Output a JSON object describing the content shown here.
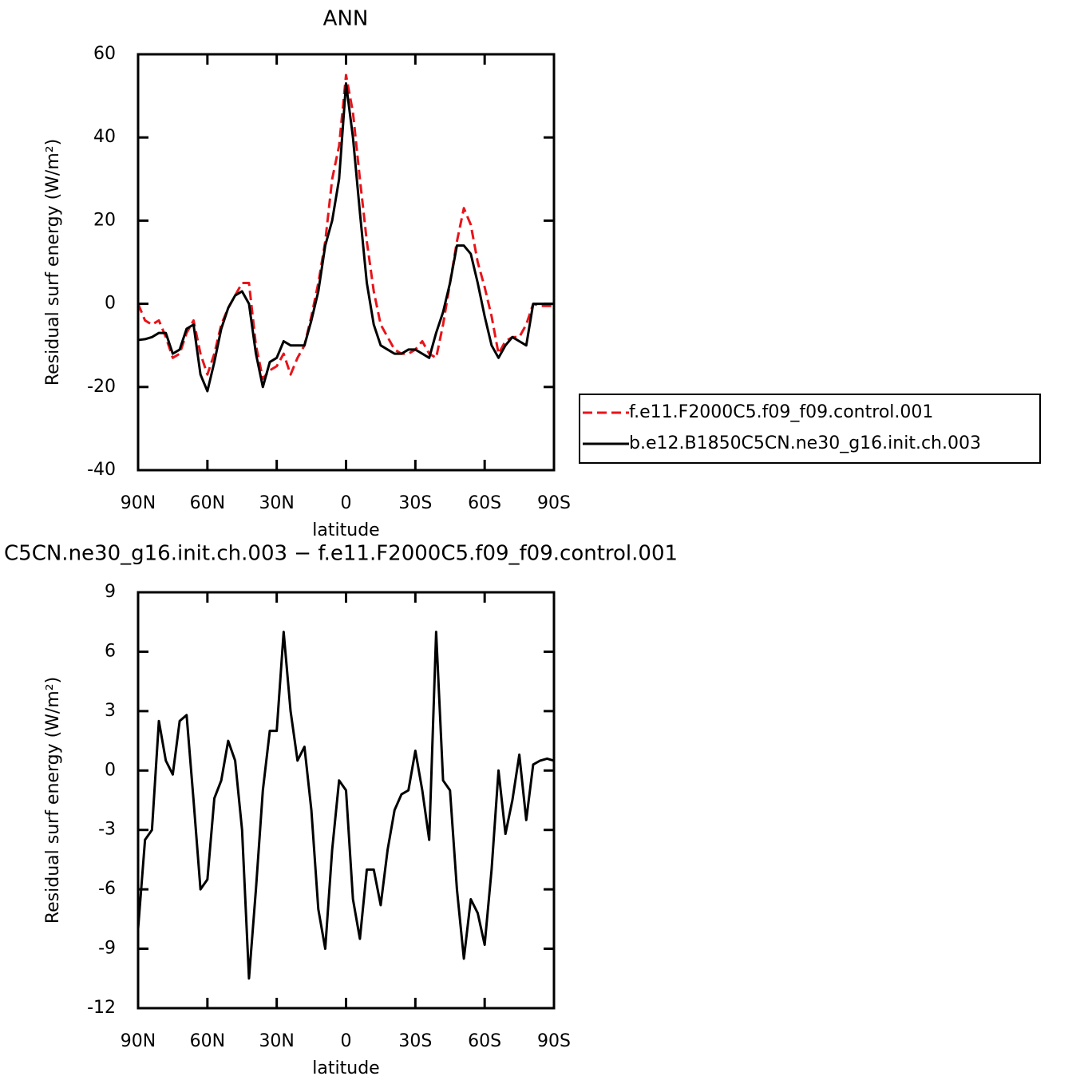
{
  "chart_data": [
    {
      "type": "line",
      "title": "ANN",
      "x_label": "latitude",
      "y_label": "Residual surf energy (W/m²)",
      "x": [
        90,
        87,
        84,
        81,
        78,
        75,
        72,
        69,
        66,
        63,
        60,
        57,
        54,
        51,
        48,
        45,
        42,
        39,
        36,
        33,
        30,
        27,
        24,
        21,
        18,
        15,
        12,
        9,
        6,
        3,
        0,
        -3,
        -6,
        -9,
        -12,
        -15,
        -18,
        -21,
        -24,
        -27,
        -30,
        -33,
        -36,
        -39,
        -42,
        -45,
        -48,
        -51,
        -54,
        -57,
        -60,
        -63,
        -66,
        -69,
        -72,
        -75,
        -78,
        -81,
        -84,
        -87,
        -90
      ],
      "xlim": [
        90,
        -90
      ],
      "xticks": [
        {
          "value": 90,
          "label": "90N"
        },
        {
          "value": 60,
          "label": "60N"
        },
        {
          "value": 30,
          "label": "30N"
        },
        0,
        {
          "value": -30,
          "label": "30S"
        },
        {
          "value": -60,
          "label": "60S"
        },
        {
          "value": -90,
          "label": "90S"
        }
      ],
      "ylim": [
        -40,
        60
      ],
      "yticks": [
        -40,
        -20,
        0,
        20,
        40,
        60
      ],
      "legend": "right",
      "series": [
        {
          "name": "f.e11.F2000C5.f09_f09.control.001",
          "color": "#e8141a",
          "dash": true,
          "values": [
            0,
            -4,
            -5,
            -4,
            -8,
            -13,
            -12,
            -7,
            -4,
            -12,
            -17,
            -12,
            -5,
            -1,
            2,
            5,
            5,
            -10,
            -18,
            -16,
            -15,
            -12,
            -17,
            -13,
            -10,
            -3,
            5,
            15,
            30,
            38,
            55,
            46,
            30,
            15,
            3,
            -5,
            -8,
            -11,
            -12,
            -12,
            -11,
            -9,
            -12,
            -13,
            -5,
            5,
            15,
            23,
            19,
            10,
            4,
            -3,
            -12,
            -9,
            -8,
            -8,
            -5,
            0,
            -0.5,
            -0.5,
            -0.5
          ]
        },
        {
          "name": "b.e12.B1850C5CN.ne30_g16.init.ch.003",
          "color": "#000000",
          "dash": false,
          "values": [
            -8.7,
            -8.5,
            -8,
            -7,
            -7,
            -12,
            -11,
            -6,
            -5,
            -17,
            -21,
            -14,
            -6,
            -1,
            2,
            3,
            0,
            -12,
            -20,
            -14,
            -13,
            -9,
            -10,
            -10,
            -10,
            -4,
            3,
            14,
            20,
            30,
            53,
            40,
            22,
            5,
            -5,
            -10,
            -11,
            -12,
            -12,
            -11,
            -11,
            -12,
            -13,
            -7,
            -2,
            5,
            14,
            14,
            12,
            5,
            -3,
            -10,
            -13,
            -10,
            -8,
            -9,
            -10,
            0,
            0,
            0,
            0
          ]
        }
      ]
    },
    {
      "type": "line",
      "title": "C5CN.ne30_g16.init.ch.003 − f.e11.F2000C5.f09_f09.control.001",
      "x_label": "latitude",
      "y_label": "Residual surf energy (W/m²)",
      "x": [
        90,
        87,
        84,
        81,
        78,
        75,
        72,
        69,
        66,
        63,
        60,
        57,
        54,
        51,
        48,
        45,
        42,
        39,
        36,
        33,
        30,
        27,
        24,
        21,
        18,
        15,
        12,
        9,
        6,
        3,
        0,
        -3,
        -6,
        -9,
        -12,
        -15,
        -18,
        -21,
        -24,
        -27,
        -30,
        -33,
        -36,
        -39,
        -42,
        -45,
        -48,
        -51,
        -54,
        -57,
        -60,
        -63,
        -66,
        -69,
        -72,
        -75,
        -78,
        -81,
        -84,
        -87,
        -90
      ],
      "xlim": [
        90,
        -90
      ],
      "xticks": [
        {
          "value": 90,
          "label": "90N"
        },
        {
          "value": 60,
          "label": "60N"
        },
        {
          "value": 30,
          "label": "30N"
        },
        0,
        {
          "value": -30,
          "label": "30S"
        },
        {
          "value": -60,
          "label": "60S"
        },
        {
          "value": -90,
          "label": "90S"
        }
      ],
      "ylim": [
        -12,
        9
      ],
      "yticks": [
        -12,
        -9,
        -6,
        -3,
        0,
        3,
        6,
        9
      ],
      "series": [
        {
          "color": "#000000",
          "dash": false,
          "values": [
            -8,
            -3.5,
            -3,
            2.5,
            0.5,
            -0.2,
            2.5,
            2.8,
            -1.5,
            -6,
            -5.5,
            -1.4,
            -0.5,
            1.5,
            0.5,
            -3,
            -10.5,
            -6,
            -1,
            2,
            2,
            7,
            3,
            0.5,
            1.2,
            -2,
            -7,
            -9,
            -4,
            -0.5,
            -1,
            -6.5,
            -8.5,
            -5,
            -5,
            -6.8,
            -4,
            -2,
            -1.2,
            -1,
            1,
            -1,
            -3.5,
            7,
            -0.5,
            -1,
            -6,
            -9.5,
            -6.5,
            -7.2,
            -8.8,
            -5,
            0,
            -3.2,
            -1.5,
            0.8,
            -2.5,
            0.3,
            0.5,
            0.6,
            0.5
          ]
        }
      ]
    }
  ]
}
